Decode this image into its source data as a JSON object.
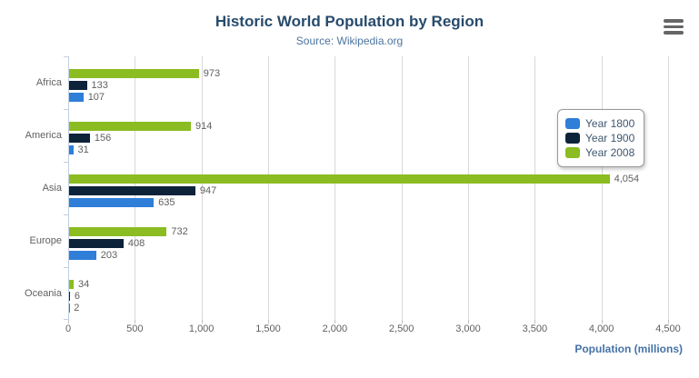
{
  "header": {
    "title": "Historic World Population by Region",
    "subtitle": "Source: Wikipedia.org"
  },
  "chart_data": {
    "type": "bar",
    "orientation": "horizontal",
    "title": "Historic World Population by Region",
    "subtitle": "Source: Wikipedia.org",
    "categories": [
      "Africa",
      "America",
      "Asia",
      "Europe",
      "Oceania"
    ],
    "series": [
      {
        "name": "Year 1800",
        "color": "#2f7ed8",
        "values": [
          107,
          31,
          635,
          203,
          2
        ]
      },
      {
        "name": "Year 1900",
        "color": "#0d233a",
        "values": [
          133,
          156,
          947,
          408,
          6
        ]
      },
      {
        "name": "Year 2008",
        "color": "#8bbc21",
        "values": [
          973,
          914,
          4054,
          732,
          34
        ]
      }
    ],
    "bar_order_top_to_bottom": [
      "Year 2008",
      "Year 1900",
      "Year 1800"
    ],
    "xlabel": "Population (millions)",
    "ylabel": "",
    "xlim": [
      0,
      4500
    ],
    "xticks": [
      0,
      500,
      1000,
      1500,
      2000,
      2500,
      3000,
      3500,
      4000,
      4500
    ],
    "grid": true,
    "data_labels": true,
    "legend_position": "right-inside"
  },
  "legend": {
    "items": [
      {
        "label": "Year 1800",
        "color": "#2f7ed8"
      },
      {
        "label": "Year 1900",
        "color": "#0d233a"
      },
      {
        "label": "Year 2008",
        "color": "#8bbc21"
      }
    ]
  },
  "colors": {
    "title": "#274b6d",
    "subtitle": "#4d759e",
    "axis_title": "#4572A7",
    "axis_line": "#C0D0E0",
    "gridline": "#D8D8D8",
    "tick_label": "#606060",
    "data_label": "#606060",
    "legend_text": "#3E576F",
    "menu_icon": "#666666"
  },
  "menu": {
    "icon": "hamburger-icon"
  }
}
